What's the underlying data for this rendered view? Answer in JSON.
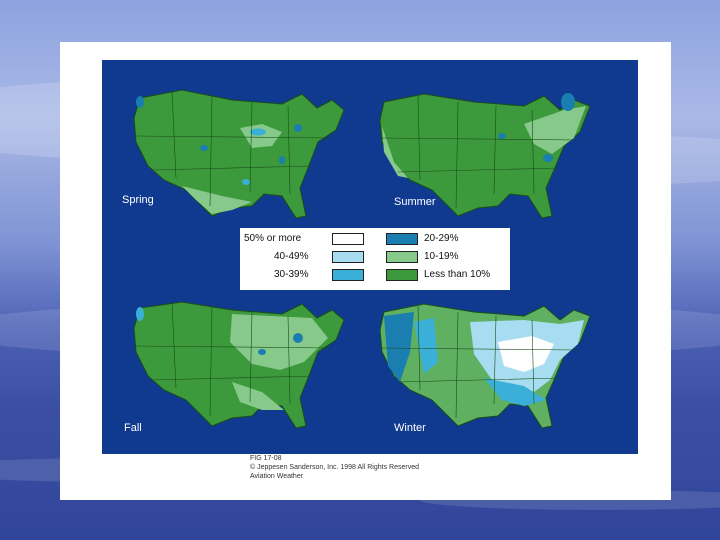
{
  "figure": {
    "panels": [
      {
        "season": "Spring",
        "dominant": "#3d9a3c"
      },
      {
        "season": "Summer",
        "dominant": "#3d9a3c"
      },
      {
        "season": "Fall",
        "dominant": "#3d9a3c"
      },
      {
        "season": "Winter",
        "dominant": "#5fb060"
      }
    ],
    "legend": [
      {
        "label": "50% or more",
        "color": "#ffffff"
      },
      {
        "label": "40-49%",
        "color": "#a8dcf0"
      },
      {
        "label": "30-39%",
        "color": "#3ab0d8"
      },
      {
        "label": "20-29%",
        "color": "#1a7fb0"
      },
      {
        "label": "10-19%",
        "color": "#86c98a"
      },
      {
        "label": "Less than 10%",
        "color": "#3d9a3c"
      }
    ],
    "credits": {
      "line1": "FIG 17-08",
      "line2": "© Jeppesen Sanderson, Inc. 1998 All Rights Reserved",
      "line3": "Aviation Weather"
    }
  },
  "colors": {
    "map_background": "#0f3a8f",
    "slide_background": "#3c4fa3"
  }
}
